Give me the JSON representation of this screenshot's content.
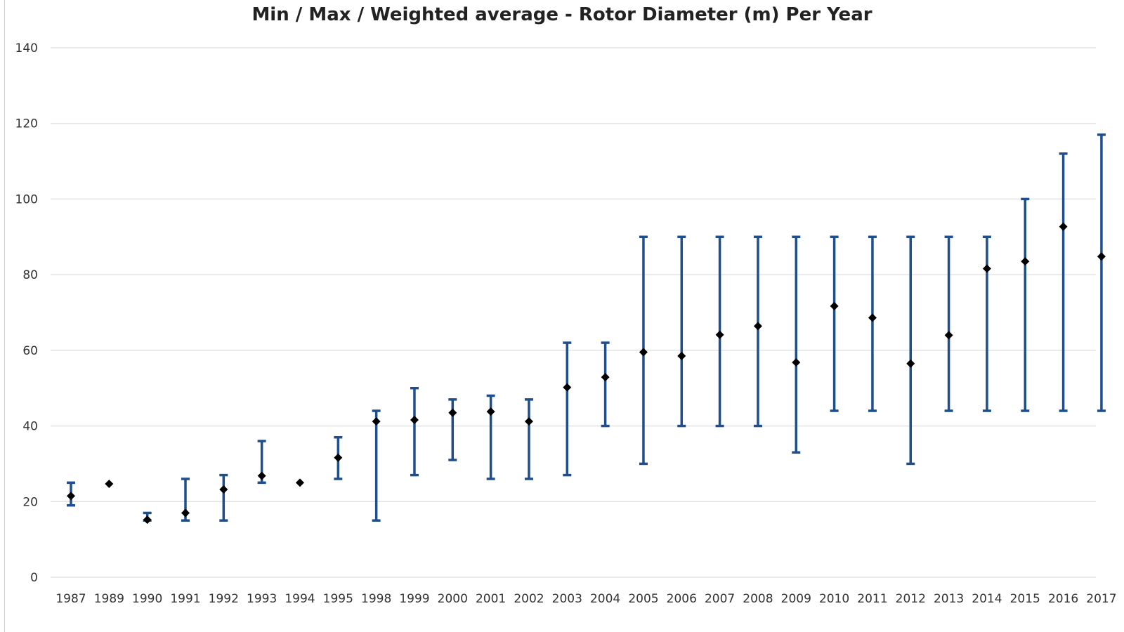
{
  "chart_data": {
    "type": "scatter",
    "title": "Min / Max / Weighted average - Rotor Diameter (m) Per Year",
    "xlabel": "",
    "ylabel": "",
    "ylim": [
      0,
      140
    ],
    "yticks": [
      0,
      20,
      40,
      60,
      80,
      100,
      120,
      140
    ],
    "grid": true,
    "categories": [
      "1987",
      "1989",
      "1990",
      "1991",
      "1992",
      "1993",
      "1994",
      "1995",
      "1998",
      "1999",
      "2000",
      "2001",
      "2002",
      "2003",
      "2004",
      "2005",
      "2006",
      "2007",
      "2008",
      "2009",
      "2010",
      "2011",
      "2012",
      "2013",
      "2014",
      "2015",
      "2016",
      "2017"
    ],
    "min": [
      19,
      25,
      15,
      15,
      15,
      25,
      25,
      26,
      15,
      27,
      31,
      26,
      26,
      27,
      40,
      30,
      40,
      40,
      40,
      33,
      44,
      44,
      30,
      44,
      44,
      44,
      44,
      44
    ],
    "max": [
      25,
      25,
      17,
      26,
      27,
      36,
      25,
      37,
      44,
      50,
      47,
      48,
      47,
      62,
      62,
      90,
      90,
      90,
      90,
      90,
      90,
      90,
      90,
      90,
      90,
      100,
      112,
      117
    ],
    "average": [
      21.5,
      24.7,
      15.2,
      17,
      23.2,
      26.8,
      25,
      31.6,
      41.2,
      41.6,
      43.5,
      43.8,
      41.2,
      50.2,
      52.9,
      59.5,
      58.5,
      64.1,
      66.4,
      56.8,
      71.7,
      68.6,
      56.5,
      64,
      81.6,
      83.5,
      92.7,
      84.8
    ],
    "colors": {
      "range": "#1f4e8c",
      "average": "#000000",
      "grid": "#e3e3e3"
    }
  }
}
